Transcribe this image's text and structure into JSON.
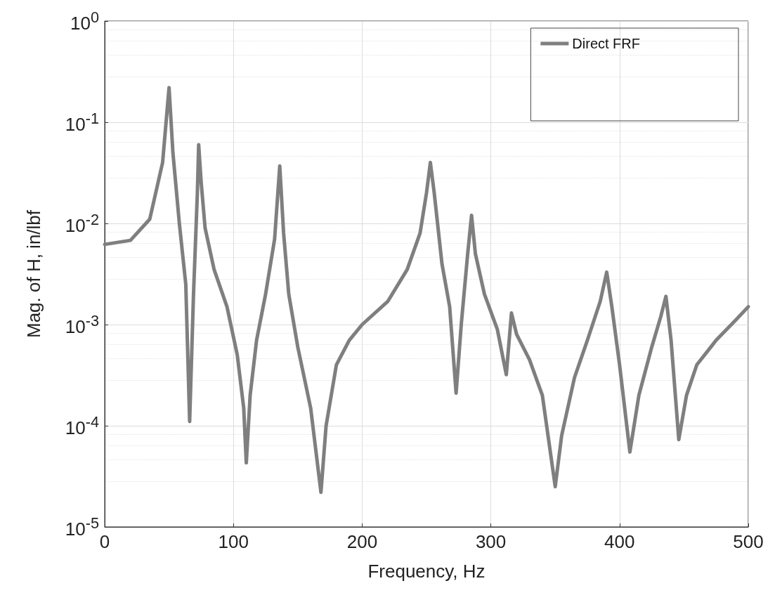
{
  "chart_data": {
    "type": "line",
    "xlabel": "Frequency, Hz",
    "ylabel": "Mag. of H, in/lbf",
    "log": "y",
    "grid": true,
    "legend": "top right",
    "marker": "none",
    "line_style": "solid",
    "xlim": [
      0,
      500
    ],
    "xticks": [
      0,
      100,
      200,
      300,
      400,
      500
    ],
    "ylim": [
      1e-05,
      1
    ],
    "yticks": [
      {
        "value": 1e-05,
        "label": "10$^{-5}$"
      },
      {
        "value": 0.0001,
        "label": "10$^{-4}$"
      },
      {
        "value": 0.001,
        "label": "10$^{-3}$"
      },
      {
        "value": 0.01,
        "label": "10$^{-2}$"
      },
      {
        "value": 0.1,
        "label": "10$^{-1}$"
      },
      {
        "value": 1,
        "label": "10$^{0}$"
      }
    ],
    "series": [
      {
        "name": "Direct FRF",
        "color": "#7f7f7f",
        "x": [
          0,
          20,
          35,
          45,
          50,
          53,
          58,
          63,
          66,
          69,
          72,
          73,
          75,
          78,
          85,
          95,
          103,
          108,
          110,
          113,
          118,
          125,
          132,
          136,
          139,
          143,
          150,
          160,
          168,
          172,
          180,
          190,
          200,
          220,
          235,
          245,
          250,
          253,
          256,
          262,
          268,
          273,
          277,
          282,
          285,
          288,
          295,
          305,
          312,
          316,
          320,
          330,
          340,
          350,
          355,
          365,
          375,
          385,
          390,
          394,
          400,
          408,
          415,
          425,
          432,
          436,
          440,
          446,
          452,
          460,
          475,
          490,
          500
        ],
        "values": [
          0.0062,
          0.0068,
          0.011,
          0.04,
          0.22,
          0.05,
          0.01,
          0.0025,
          0.00011,
          0.002,
          0.02,
          0.06,
          0.025,
          0.009,
          0.0035,
          0.0015,
          0.0005,
          0.00015,
          4.3e-05,
          0.0002,
          0.0007,
          0.002,
          0.007,
          0.037,
          0.008,
          0.002,
          0.0006,
          0.00015,
          2.2e-05,
          0.0001,
          0.0004,
          0.0007,
          0.001,
          0.0017,
          0.0035,
          0.008,
          0.02,
          0.04,
          0.02,
          0.004,
          0.0015,
          0.00021,
          0.001,
          0.005,
          0.012,
          0.005,
          0.002,
          0.0009,
          0.00032,
          0.0013,
          0.0008,
          0.00045,
          0.0002,
          2.5e-05,
          8e-05,
          0.0003,
          0.0007,
          0.0017,
          0.0033,
          0.0015,
          0.0004,
          5.5e-05,
          0.0002,
          0.0006,
          0.0012,
          0.0019,
          0.0007,
          7.3e-05,
          0.0002,
          0.0004,
          0.0007,
          0.0011,
          0.0015
        ]
      }
    ]
  }
}
